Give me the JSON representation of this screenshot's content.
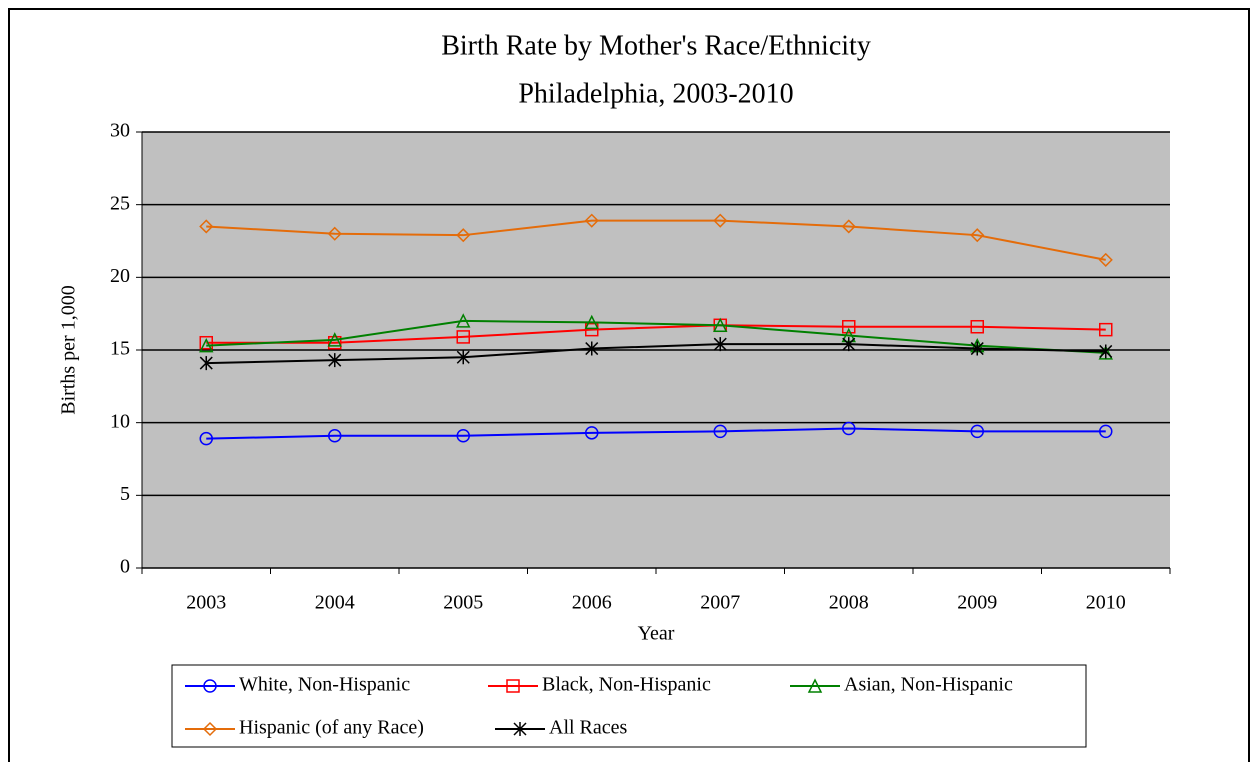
{
  "chart_data": {
    "type": "line",
    "title": "Birth Rate by Mother's Race/Ethnicity",
    "subtitle": "Philadelphia, 2003-2010",
    "x_label": "Year",
    "y_label": "Births per 1,000",
    "categories": [
      "2003",
      "2004",
      "2005",
      "2006",
      "2007",
      "2008",
      "2009",
      "2010"
    ],
    "ylim": [
      0,
      30
    ],
    "yticks": [
      0,
      5,
      10,
      15,
      20,
      25,
      30
    ],
    "grid": true,
    "legend": "bottom",
    "series": [
      {
        "name": "White, Non-Hispanic",
        "color": "#0000ff",
        "marker": "circle",
        "values": [
          8.9,
          9.1,
          9.1,
          9.3,
          9.4,
          9.6,
          9.4,
          9.4
        ]
      },
      {
        "name": "Black, Non-Hispanic",
        "color": "#ff0000",
        "marker": "square",
        "values": [
          15.5,
          15.5,
          15.9,
          16.4,
          16.7,
          16.6,
          16.6,
          16.4
        ]
      },
      {
        "name": "Asian, Non-Hispanic",
        "color": "#008000",
        "marker": "triangle",
        "values": [
          15.3,
          15.7,
          17.0,
          16.9,
          16.7,
          16.0,
          15.3,
          14.8
        ]
      },
      {
        "name": "Hispanic (of any Race)",
        "color": "#e46c0a",
        "marker": "diamond",
        "values": [
          23.5,
          23.0,
          22.9,
          23.9,
          23.9,
          23.5,
          22.9,
          21.2
        ]
      },
      {
        "name": "All Races",
        "color": "#000000",
        "marker": "star",
        "values": [
          14.1,
          14.3,
          14.5,
          15.1,
          15.4,
          15.4,
          15.1,
          14.9
        ]
      }
    ]
  }
}
